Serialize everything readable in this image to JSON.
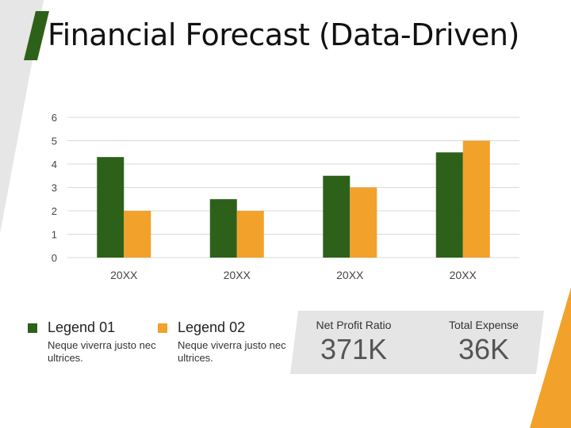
{
  "title": "Financial Forecast (Data-Driven)",
  "colors": {
    "series1": "#2d6119",
    "series2": "#f2a12a",
    "accent_green": "#2d6119",
    "accent_orange": "#f2a12a",
    "panel": "#e5e5e5",
    "grid": "#d9d9d9"
  },
  "chart_data": {
    "type": "bar",
    "categories": [
      "20XX",
      "20XX",
      "20XX",
      "20XX"
    ],
    "series": [
      {
        "name": "Legend 01",
        "values": [
          4.3,
          2.5,
          3.5,
          4.5
        ]
      },
      {
        "name": "Legend 02",
        "values": [
          2,
          2,
          3,
          5
        ]
      }
    ],
    "ylim": [
      0,
      6
    ],
    "yticks": [
      0,
      1,
      2,
      3,
      4,
      5,
      6
    ],
    "grid": true,
    "xlabel": "",
    "ylabel": ""
  },
  "legend": [
    {
      "label": "Legend 01",
      "desc": "Neque viverra justo nec ultrices."
    },
    {
      "label": "Legend 02",
      "desc": "Neque viverra justo nec ultrices."
    }
  ],
  "stats": [
    {
      "label": "Net Profit Ratio",
      "value": "371K"
    },
    {
      "label": "Total Expense",
      "value": "36K"
    }
  ]
}
